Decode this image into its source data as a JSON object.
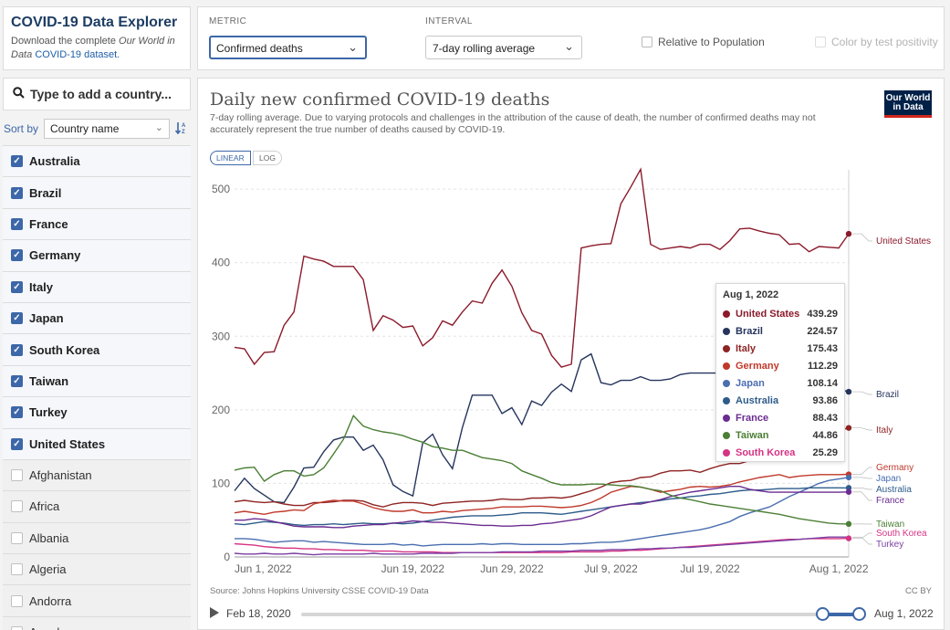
{
  "sidebar": {
    "title": "COVID-19 Data Explorer",
    "desc_prefix": "Download the complete ",
    "desc_italic": "Our World in Data",
    "desc_link": "COVID-19 dataset.",
    "search_placeholder": "Type to add a country...",
    "sort_label": "Sort by",
    "sort_value": "Country name",
    "countries": [
      {
        "name": "Australia",
        "checked": true
      },
      {
        "name": "Brazil",
        "checked": true
      },
      {
        "name": "France",
        "checked": true
      },
      {
        "name": "Germany",
        "checked": true
      },
      {
        "name": "Italy",
        "checked": true
      },
      {
        "name": "Japan",
        "checked": true
      },
      {
        "name": "South Korea",
        "checked": true
      },
      {
        "name": "Taiwan",
        "checked": true
      },
      {
        "name": "Turkey",
        "checked": true
      },
      {
        "name": "United States",
        "checked": true
      },
      {
        "name": "Afghanistan",
        "checked": false
      },
      {
        "name": "Africa",
        "checked": false
      },
      {
        "name": "Albania",
        "checked": false
      },
      {
        "name": "Algeria",
        "checked": false
      },
      {
        "name": "Andorra",
        "checked": false
      },
      {
        "name": "Angola",
        "checked": false
      }
    ]
  },
  "controls": {
    "metric_label": "METRIC",
    "metric_value": "Confirmed deaths",
    "interval_label": "INTERVAL",
    "interval_value": "7-day rolling average",
    "relative_label": "Relative to Population",
    "color_label": "Color by test positivity"
  },
  "chart": {
    "title": "Daily new confirmed COVID-19 deaths",
    "subtitle": "7-day rolling average. Due to varying protocols and challenges in the attribution of the cause of death, the number of confirmed deaths may not accurately represent the true number of deaths caused by COVID-19.",
    "logo_line1": "Our World",
    "logo_line2": "in Data",
    "linear_label": "LINEAR",
    "log_label": "LOG",
    "source": "Source: Johns Hopkins University CSSE COVID-19 Data",
    "license": "CC BY",
    "timeline_start": "Feb 18, 2020",
    "timeline_end": "Aug 1, 2022",
    "tooltip_date": "Aug 1, 2022"
  },
  "colors": {
    "United States": "#8b1a2b",
    "Brazil": "#26355e",
    "Italy": "#8f2424",
    "Germany": "#c0392b",
    "Japan": "#4a6eb0",
    "Australia": "#2e5c8a",
    "France": "#6a2c91",
    "Taiwan": "#4b7f35",
    "South Korea": "#d63384",
    "Turkey": "#7b3fa3"
  },
  "chart_data": {
    "type": "line",
    "xlabel": "",
    "ylabel": "",
    "ylim": [
      0,
      530
    ],
    "yticks": [
      0,
      100,
      200,
      300,
      400,
      500
    ],
    "xtick_labels": [
      "Jun 1, 2022",
      "Jun 19, 2022",
      "Jun 29, 2022",
      "Jul 9, 2022",
      "Jul 19, 2022",
      "Aug 1, 2022"
    ],
    "xtick_days": [
      0,
      18,
      28,
      38,
      48,
      61
    ],
    "x_start": "Jun 1, 2022",
    "series": [
      {
        "name": "United States",
        "values": [
          285,
          283,
          262,
          278,
          279,
          315,
          333,
          409,
          405,
          402,
          395,
          395,
          395,
          377,
          308,
          328,
          322,
          312,
          314,
          287,
          298,
          321,
          315,
          333,
          348,
          345,
          372,
          390,
          368,
          332,
          308,
          303,
          274,
          258,
          262,
          420,
          423,
          425,
          426,
          480,
          503,
          527,
          425,
          418,
          420,
          422,
          420,
          425,
          425,
          418,
          430,
          446,
          447,
          443,
          440,
          438,
          425,
          426,
          415,
          422,
          421,
          420,
          439.29
        ]
      },
      {
        "name": "Brazil",
        "values": [
          90,
          107,
          93,
          84,
          75,
          74,
          95,
          121,
          122,
          143,
          159,
          163,
          163,
          145,
          152,
          132,
          98,
          89,
          83,
          155,
          167,
          139,
          120,
          176,
          220,
          220,
          220,
          195,
          203,
          180,
          212,
          206,
          224,
          235,
          225,
          268,
          276,
          237,
          234,
          240,
          240,
          245,
          240,
          240,
          242,
          248,
          250,
          250,
          250,
          250,
          250,
          255,
          255,
          258,
          260,
          255,
          250,
          245,
          240,
          235,
          232,
          228,
          224.57
        ]
      },
      {
        "name": "Italy",
        "values": [
          75,
          77,
          75,
          74,
          75,
          72,
          70,
          70,
          74,
          74,
          75,
          77,
          77,
          76,
          71,
          68,
          72,
          74,
          74,
          73,
          70,
          73,
          74,
          75,
          76,
          76,
          77,
          79,
          78,
          78,
          80,
          80,
          81,
          80,
          82,
          86,
          90,
          95,
          101,
          103,
          104,
          108,
          109,
          114,
          117,
          117,
          118,
          115,
          120,
          124,
          127,
          127,
          131,
          135,
          140,
          150,
          155,
          160,
          165,
          168,
          170,
          172,
          175.43
        ]
      },
      {
        "name": "Germany",
        "values": [
          60,
          62,
          60,
          58,
          61,
          62,
          64,
          63,
          72,
          75,
          77,
          76,
          76,
          72,
          67,
          64,
          62,
          62,
          64,
          60,
          60,
          62,
          61,
          63,
          64,
          65,
          66,
          68,
          68,
          68,
          69,
          69,
          68,
          67,
          68,
          70,
          74,
          80,
          88,
          92,
          96,
          95,
          92,
          88,
          90,
          92,
          95,
          96,
          95,
          96,
          98,
          102,
          105,
          108,
          110,
          112,
          108,
          110,
          111,
          112,
          112,
          112,
          112.29
        ]
      },
      {
        "name": "Japan",
        "values": [
          25,
          25,
          24,
          22,
          20,
          21,
          22,
          22,
          20,
          21,
          20,
          19,
          18,
          17,
          17,
          17,
          18,
          16,
          17,
          15,
          16,
          17,
          17,
          17,
          17,
          18,
          17,
          18,
          18,
          17,
          17,
          17,
          17,
          17,
          18,
          18,
          19,
          20,
          20,
          21,
          23,
          25,
          27,
          29,
          31,
          33,
          35,
          37,
          40,
          44,
          48,
          55,
          60,
          64,
          68,
          75,
          82,
          88,
          94,
          100,
          104,
          106,
          108.14
        ]
      },
      {
        "name": "Australia",
        "values": [
          45,
          44,
          46,
          48,
          47,
          46,
          44,
          43,
          44,
          44,
          45,
          44,
          45,
          46,
          45,
          45,
          46,
          45,
          46,
          48,
          50,
          52,
          54,
          55,
          56,
          56,
          56,
          57,
          58,
          60,
          60,
          60,
          59,
          58,
          60,
          62,
          64,
          66,
          68,
          70,
          72,
          74,
          75,
          77,
          79,
          80,
          82,
          83,
          85,
          86,
          88,
          90,
          91,
          91,
          92,
          93,
          93,
          93,
          94,
          94,
          94,
          94,
          93.86
        ]
      },
      {
        "name": "France",
        "values": [
          50,
          50,
          52,
          51,
          48,
          45,
          42,
          41,
          41,
          41,
          40,
          40,
          42,
          43,
          44,
          44,
          46,
          47,
          49,
          48,
          47,
          47,
          46,
          45,
          44,
          43,
          43,
          42,
          42,
          43,
          43,
          45,
          46,
          48,
          50,
          52,
          56,
          62,
          68,
          70,
          72,
          72,
          75,
          78,
          82,
          85,
          88,
          90,
          92,
          94,
          96,
          96,
          92,
          90,
          88,
          88,
          88,
          88,
          88,
          88,
          88,
          88,
          88.43
        ]
      },
      {
        "name": "Taiwan",
        "values": [
          118,
          121,
          122,
          103,
          112,
          117,
          117,
          110,
          112,
          121,
          140,
          160,
          192,
          178,
          173,
          170,
          168,
          165,
          160,
          156,
          150,
          148,
          145,
          145,
          140,
          135,
          133,
          131,
          127,
          117,
          112,
          107,
          101,
          98,
          98,
          98,
          99,
          99,
          98,
          97,
          97,
          95,
          92,
          90,
          84,
          80,
          78,
          75,
          72,
          70,
          68,
          66,
          64,
          62,
          60,
          58,
          55,
          52,
          50,
          48,
          46,
          45,
          44.86
        ]
      },
      {
        "name": "South Korea",
        "values": [
          18,
          17,
          16,
          14,
          13,
          12,
          12,
          11,
          11,
          10,
          10,
          9,
          9,
          9,
          8,
          8,
          8,
          7,
          7,
          7,
          7,
          6,
          6,
          6,
          6,
          6,
          6,
          6,
          6,
          6,
          6,
          6,
          6,
          6,
          7,
          7,
          7,
          7,
          8,
          8,
          9,
          9,
          10,
          11,
          12,
          13,
          14,
          15,
          16,
          17,
          18,
          19,
          20,
          21,
          22,
          23,
          24,
          24,
          25,
          25,
          25,
          25,
          25.29
        ]
      },
      {
        "name": "Turkey",
        "values": [
          5,
          4,
          4,
          5,
          4,
          4,
          5,
          4,
          3,
          4,
          4,
          4,
          4,
          4,
          5,
          4,
          4,
          4,
          4,
          5,
          5,
          5,
          5,
          6,
          6,
          6,
          6,
          7,
          7,
          7,
          7,
          8,
          8,
          8,
          8,
          9,
          9,
          9,
          10,
          10,
          10,
          11,
          11,
          12,
          12,
          13,
          13,
          14,
          15,
          16,
          17,
          18,
          19,
          20,
          21,
          22,
          23,
          24,
          25,
          26,
          27,
          27,
          27
        ]
      }
    ],
    "end_labels": [
      "United States",
      "Brazil",
      "Italy",
      "Germany",
      "Japan",
      "Australia",
      "France",
      "Taiwan",
      "South Korea",
      "Turkey"
    ],
    "tooltip_values": {
      "United States": "439.29",
      "Brazil": "224.57",
      "Italy": "175.43",
      "Germany": "112.29",
      "Japan": "108.14",
      "Australia": "93.86",
      "France": "88.43",
      "Taiwan": "44.86",
      "South Korea": "25.29"
    }
  }
}
